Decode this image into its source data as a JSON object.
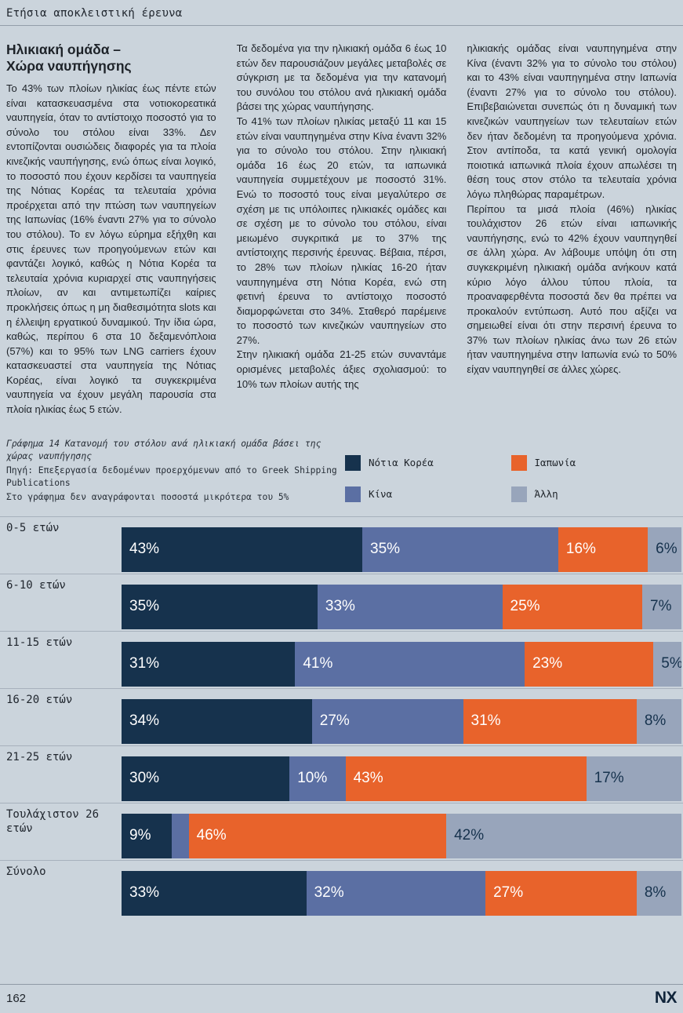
{
  "page": {
    "header": "Ετήσια αποκλειστική έρευνα",
    "footer": {
      "page_number": "162",
      "logo": "NX"
    },
    "colors": {
      "background": "#cbd4dc",
      "text": "#1d2228",
      "rule": "#a7b1bc"
    }
  },
  "article": {
    "heading_lines": [
      "Ηλικιακή ομάδα –",
      "Χώρα ναυπήγησης"
    ],
    "col1": [
      "Το 43% των πλοίων ηλικίας έως πέντε ετών είναι κατασκευασμένα στα νοτιοκορεατικά ναυπηγεία, όταν το αντίστοιχο ποσοστό για το σύνολο του στόλου είναι 33%. Δεν εντοπίζονται ουσιώδεις διαφορές για τα πλοία κινεζικής ναυπήγησης, ενώ όπως είναι λογικό, το ποσοστό που έχουν κερδίσει τα ναυπηγεία της Νότιας Κορέας τα τελευταία χρόνια προέρχεται από την πτώση των ναυπηγείων της Ιαπωνίας (16% έναντι 27% για το σύνολο του στόλου). Το εν λόγω εύρημα εξήχθη και στις έρευνες των προηγούμενων ετών και φαντάζει λογικό, καθώς η Νότια Κορέα τα τελευταία χρόνια κυριαρχεί στις ναυπηγήσεις πλοίων, αν και αντιμετωπίζει καίριες προκλήσεις όπως η μη διαθεσιμότητα slots και η έλλειψη εργατικού δυναμικού. Την ίδια ώρα, καθώς, περίπου 6 στα 10 δεξαμενόπλοια (57%) και το 95% των LNG carriers έχουν κατασκευαστεί στα ναυπηγεία της Νότιας Κορέας, είναι λογικό τα συγκεκριμένα ναυπηγεία να έχουν μεγάλη παρουσία στα πλοία ηλικίας έως 5 ετών."
    ],
    "col2": [
      "Τα δεδομένα για την ηλικιακή ομάδα 6 έως 10 ετών δεν παρουσιάζουν μεγάλες μεταβολές σε σύγκριση με τα δεδομένα για την κατανομή του συνόλου του στόλου ανά ηλικιακή ομάδα βάσει της χώρας ναυπήγησης.",
      "Το 41% των πλοίων ηλικίας μεταξύ 11 και 15 ετών είναι ναυπηγημένα στην Κίνα έναντι 32% για το σύνολο του στόλου. Στην ηλικιακή ομάδα 16 έως 20 ετών, τα ιαπωνικά ναυπηγεία συμμετέχουν με ποσοστό 31%. Ενώ το ποσοστό τους είναι μεγαλύτερο σε σχέση με τις υπόλοιπες ηλικιακές ομάδες και σε σχέση με το σύνολο του στόλου, είναι μειωμένο συγκριτικά με το 37% της αντίστοιχης περσινής έρευνας. Βέβαια, πέρσι, το 28% των πλοίων ηλικίας 16-20 ήταν ναυπηγημένα στη Νότια Κορέα, ενώ στη φετινή έρευνα το αντίστοιχο ποσοστό διαμορφώνεται στο 34%. Σταθερό παρέμεινε το ποσοστό των κινεζικών ναυπηγείων στο 27%.",
      "Στην ηλικιακή ομάδα 21-25 ετών συναντάμε ορισμένες μεταβολές άξιες σχολιασμού: το 10% των πλοίων αυτής της"
    ],
    "col3": [
      "ηλικιακής ομάδας είναι ναυπηγημένα στην Κίνα (έναντι 32% για το σύνολο του στόλου) και το 43% είναι ναυπηγημένα στην Ιαπωνία (έναντι 27% για το σύνολο του στόλου). Επιβεβαιώνεται συνεπώς ότι η δυναμική των κινεζικών ναυπηγείων των τελευταίων ετών δεν ήταν δεδομένη τα προηγούμενα χρόνια. Στον αντίποδα, τα κατά γενική ομολογία ποιοτικά ιαπωνικά πλοία έχουν απωλέσει τη θέση τους στον στόλο τα τελευταία χρόνια λόγω πληθώρας παραμέτρων.",
      "Περίπου τα μισά πλοία (46%) ηλικίας τουλάχιστον 26 ετών είναι ιαπωνικής ναυπήγησης, ενώ το 42% έχουν ναυπηγηθεί σε άλλη χώρα. Αν λάβουμε υπόψη ότι στη συγκεκριμένη ηλικιακή ομάδα ανήκουν κατά κύριο λόγο άλλου τύπου πλοία, τα προαναφερθέντα ποσοστά δεν θα πρέπει να προκαλούν εντύπωση. Αυτό που αξίζει να σημειωθεί είναι ότι στην περσινή έρευνα το 37% των πλοίων ηλικίας άνω των 26 ετών ήταν ναυπηγημένα στην Ιαπωνία ενώ το 50% είχαν ναυπηγηθεί σε άλλες χώρες."
    ]
  },
  "chart_data": {
    "type": "bar",
    "variant": "horizontal-stacked",
    "title": "Γράφημα 14 Κατανομή του στόλου ανά ηλικιακή ομάδα βάσει της χώρας ναυπήγησης",
    "source": "Πηγή: Επεξεργασία δεδομένων προερχόμενων από το Greek Shipping Publications",
    "note": "Στο γράφημα δεν αναγράφονται ποσοστά μικρότερα του 5%",
    "unit": "%",
    "xlim": [
      0,
      100
    ],
    "min_label_threshold": 5,
    "legend_position": "top-right",
    "series": [
      {
        "key": "notia-korea",
        "name": "Νότια Κορέα",
        "color": "#16324d",
        "label_color": "#ffffff"
      },
      {
        "key": "kina",
        "name": "Κίνα",
        "color": "#5b6fa3",
        "label_color": "#ffffff"
      },
      {
        "key": "iaponia",
        "name": "Ιαπωνία",
        "color": "#e8632b",
        "label_color": "#ffffff"
      },
      {
        "key": "alli",
        "name": "Άλλη",
        "color": "#98a5bb",
        "label_color": "#16324d"
      }
    ],
    "legend_display_order": [
      0,
      2,
      1,
      3
    ],
    "categories": [
      "0-5 ετών",
      "6-10 ετών",
      "11-15 ετών",
      "16-20 ετών",
      "21-25 ετών",
      "Τουλάχιστον 26 ετών",
      "Σύνολο"
    ],
    "rows": [
      {
        "label": "0-5 ετών",
        "values": [
          43,
          35,
          16,
          6
        ]
      },
      {
        "label": "6-10 ετών",
        "values": [
          35,
          33,
          25,
          7
        ]
      },
      {
        "label": "11-15 ετών",
        "values": [
          31,
          41,
          23,
          5
        ]
      },
      {
        "label": "16-20 ετών",
        "values": [
          34,
          27,
          31,
          8
        ]
      },
      {
        "label": "21-25 ετών",
        "values": [
          30,
          10,
          43,
          17
        ]
      },
      {
        "label": "Τουλάχιστον 26 ετών",
        "values": [
          9,
          3,
          46,
          42
        ]
      },
      {
        "label": "Σύνολο",
        "values": [
          33,
          32,
          27,
          8
        ]
      }
    ]
  }
}
